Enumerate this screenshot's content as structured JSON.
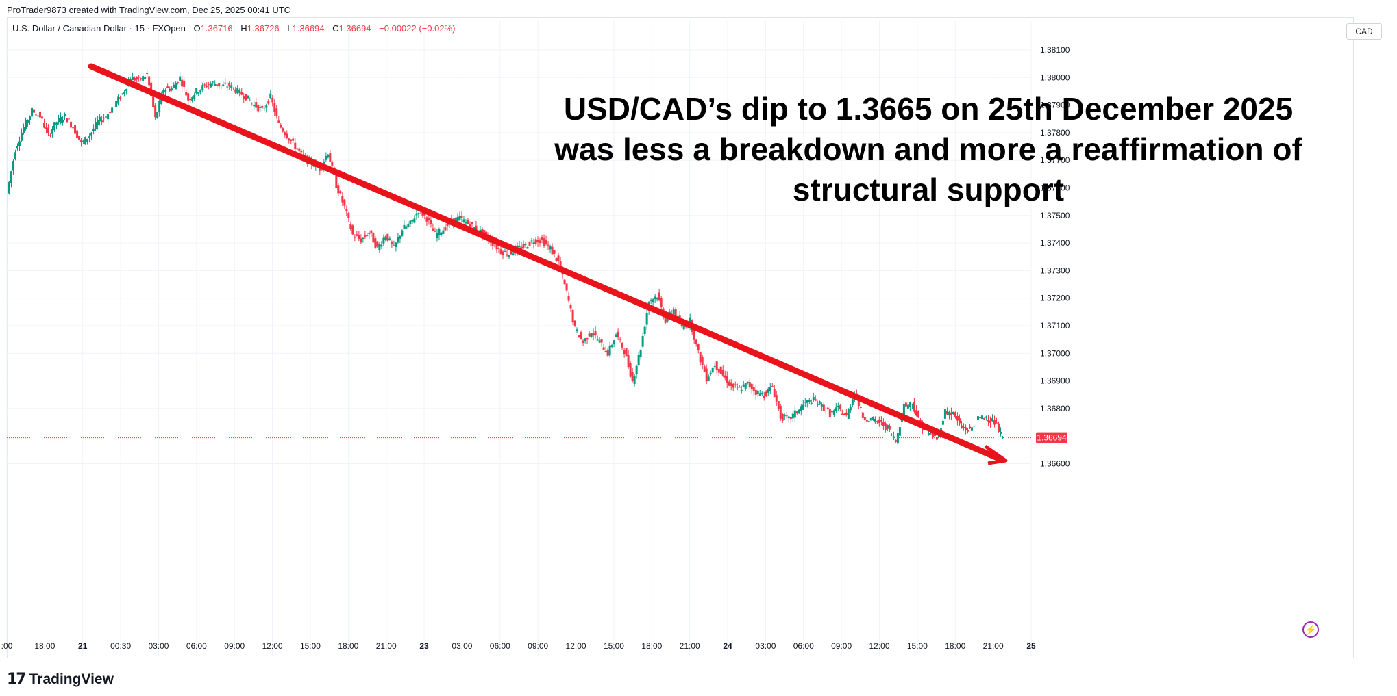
{
  "header": {
    "credit": "ProTrader9873 created with TradingView.com, Dec 25, 2025 00:41 UTC",
    "symbol": "U.S. Dollar / Canadian Dollar · 15 · FXOpen",
    "open_label": "O",
    "open": "1.36716",
    "high_label": "H",
    "high": "1.36726",
    "low_label": "L",
    "low": "1.36694",
    "close_label": "C",
    "close": "1.36694",
    "change": "−0.00022 (−0.02%)"
  },
  "currency_button": "CAD",
  "brand": {
    "mark": "17",
    "name": "TradingView"
  },
  "annotation": "USD/CAD’s dip to 1.3665 on 25th December 2025 was less a breakdown and more a reaffirmation of structural support",
  "colors": {
    "up": "#089981",
    "down": "#f23645",
    "arrow": "#e8131b",
    "grid": "#f0f3fa",
    "last_price": "#f23645"
  },
  "icons": {
    "flash": "flash-icon",
    "logo": "tradingview-logo-icon"
  },
  "chart_data": {
    "type": "candlestick",
    "symbol": "USDCAD",
    "interval": "15",
    "y_ticks": [
      "1.38100",
      "1.38000",
      "1.37900",
      "1.37800",
      "1.37700",
      "1.37600",
      "1.37500",
      "1.37400",
      "1.37300",
      "1.37200",
      "1.37100",
      "1.37000",
      "1.36900",
      "1.36800",
      "1.36600"
    ],
    "ylim": [
      1.3655,
      1.3815
    ],
    "x_ticks": [
      ":00",
      "18:00",
      "21",
      "00:30",
      "03:00",
      "06:00",
      "09:00",
      "12:00",
      "15:00",
      "18:00",
      "21:00",
      "23",
      "03:00",
      "06:00",
      "09:00",
      "12:00",
      "15:00",
      "18:00",
      "21:00",
      "24",
      "03:00",
      "06:00",
      "09:00",
      "12:00",
      "15:00",
      "18:00",
      "21:00",
      "25"
    ],
    "last_price": "1.36694",
    "close_path": [
      [
        0,
        1.3758
      ],
      [
        1,
        1.3774
      ],
      [
        2,
        1.3782
      ],
      [
        3,
        1.3788
      ],
      [
        4,
        1.3786
      ],
      [
        5,
        1.3779
      ],
      [
        6,
        1.3784
      ],
      [
        7,
        1.3786
      ],
      [
        8,
        1.3782
      ],
      [
        9,
        1.3776
      ],
      [
        10,
        1.3779
      ],
      [
        11,
        1.3784
      ],
      [
        12,
        1.3786
      ],
      [
        13,
        1.379
      ],
      [
        14,
        1.3794
      ],
      [
        15,
        1.38
      ],
      [
        16,
        1.3799
      ],
      [
        17,
        1.3801
      ],
      [
        18,
        1.3785
      ],
      [
        19,
        1.3796
      ],
      [
        20,
        1.3796
      ],
      [
        21,
        1.38
      ],
      [
        22,
        1.3792
      ],
      [
        23,
        1.3795
      ],
      [
        24,
        1.3797
      ],
      [
        25,
        1.3798
      ],
      [
        26,
        1.3797
      ],
      [
        27,
        1.3797
      ],
      [
        28,
        1.3795
      ],
      [
        29,
        1.3793
      ],
      [
        30,
        1.379
      ],
      [
        31,
        1.3788
      ],
      [
        32,
        1.3793
      ],
      [
        33,
        1.3783
      ],
      [
        34,
        1.3779
      ],
      [
        35,
        1.3775
      ],
      [
        36,
        1.3771
      ],
      [
        37,
        1.3769
      ],
      [
        38,
        1.3767
      ],
      [
        39,
        1.3773
      ],
      [
        40,
        1.3761
      ],
      [
        41,
        1.3753
      ],
      [
        42,
        1.3743
      ],
      [
        43,
        1.3741
      ],
      [
        44,
        1.3744
      ],
      [
        45,
        1.3738
      ],
      [
        46,
        1.3743
      ],
      [
        47,
        1.3738
      ],
      [
        48,
        1.3745
      ],
      [
        49,
        1.3747
      ],
      [
        50,
        1.3752
      ],
      [
        51,
        1.3749
      ],
      [
        52,
        1.3743
      ],
      [
        53,
        1.3745
      ],
      [
        54,
        1.3748
      ],
      [
        55,
        1.3749
      ],
      [
        56,
        1.3747
      ],
      [
        57,
        1.3745
      ],
      [
        58,
        1.3743
      ],
      [
        59,
        1.374
      ],
      [
        60,
        1.3737
      ],
      [
        61,
        1.3736
      ],
      [
        62,
        1.3738
      ],
      [
        63,
        1.3739
      ],
      [
        64,
        1.3741
      ],
      [
        65,
        1.3741
      ],
      [
        66,
        1.3738
      ],
      [
        67,
        1.3733
      ],
      [
        68,
        1.3722
      ],
      [
        69,
        1.3709
      ],
      [
        70,
        1.3704
      ],
      [
        71,
        1.3708
      ],
      [
        72,
        1.3704
      ],
      [
        73,
        1.37
      ],
      [
        74,
        1.3707
      ],
      [
        75,
        1.3701
      ],
      [
        76,
        1.369
      ],
      [
        77,
        1.3702
      ],
      [
        78,
        1.3719
      ],
      [
        79,
        1.3721
      ],
      [
        80,
        1.3712
      ],
      [
        81,
        1.3716
      ],
      [
        82,
        1.3709
      ],
      [
        83,
        1.3712
      ],
      [
        84,
        1.37
      ],
      [
        85,
        1.3691
      ],
      [
        86,
        1.3696
      ],
      [
        87,
        1.3692
      ],
      [
        88,
        1.3688
      ],
      [
        89,
        1.3687
      ],
      [
        90,
        1.3689
      ],
      [
        91,
        1.3686
      ],
      [
        92,
        1.3685
      ],
      [
        93,
        1.3688
      ],
      [
        94,
        1.3677
      ],
      [
        95,
        1.3676
      ],
      [
        96,
        1.3679
      ],
      [
        97,
        1.3682
      ],
      [
        98,
        1.3683
      ],
      [
        99,
        1.3681
      ],
      [
        100,
        1.3678
      ],
      [
        101,
        1.368
      ],
      [
        102,
        1.3677
      ],
      [
        103,
        1.3686
      ],
      [
        104,
        1.3677
      ],
      [
        105,
        1.3676
      ],
      [
        106,
        1.3675
      ],
      [
        107,
        1.3673
      ],
      [
        108,
        1.3668
      ],
      [
        109,
        1.3681
      ],
      [
        110,
        1.3682
      ],
      [
        111,
        1.3674
      ],
      [
        112,
        1.3671
      ],
      [
        113,
        1.3669
      ],
      [
        114,
        1.3679
      ],
      [
        115,
        1.3678
      ],
      [
        116,
        1.3673
      ],
      [
        117,
        1.3672
      ],
      [
        118,
        1.3676
      ],
      [
        119,
        1.3677
      ],
      [
        120,
        1.3675
      ],
      [
        121,
        1.3669
      ]
    ]
  }
}
